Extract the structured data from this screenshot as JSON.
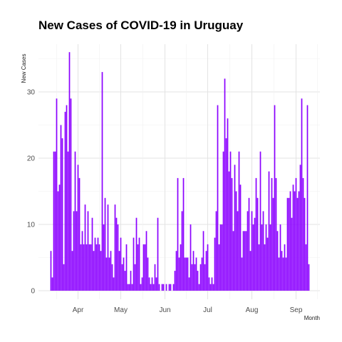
{
  "chart_data": {
    "type": "bar",
    "title": "New Cases of COVID-19 in Uruguay",
    "xlabel": "Month",
    "ylabel": "New Cases",
    "ylim": [
      0,
      36
    ],
    "y_ticks": [
      0,
      10,
      20,
      30
    ],
    "x_tick_labels": [
      "Apr",
      "May",
      "Jun",
      "Jul",
      "Aug",
      "Sep"
    ],
    "grid": true,
    "bar_color": "#8B00FF",
    "x_start": "2020-03-13",
    "values": [
      6,
      2,
      21,
      21,
      29,
      15,
      16,
      25,
      23,
      4,
      27,
      28,
      21,
      36,
      29,
      6,
      12,
      21,
      12,
      19,
      17,
      7,
      9,
      7,
      13,
      7,
      12,
      7,
      7,
      11,
      6,
      8,
      7,
      8,
      7,
      6,
      33,
      10,
      14,
      5,
      13,
      5,
      6,
      4,
      2,
      13,
      11,
      10,
      6,
      8,
      4,
      5,
      3,
      7,
      1,
      1,
      3,
      1,
      8,
      4,
      11,
      7,
      8,
      1,
      2,
      7,
      7,
      9,
      5,
      2,
      1,
      2,
      1,
      4,
      2,
      11,
      1,
      0,
      1,
      1,
      0,
      1,
      0,
      1,
      1,
      0,
      1,
      3,
      6,
      17,
      5,
      7,
      12,
      17,
      5,
      5,
      5,
      2,
      10,
      4,
      6,
      4,
      5,
      3,
      1,
      4,
      5,
      9,
      4,
      6,
      7,
      2,
      1,
      2,
      1,
      8,
      12,
      28,
      7,
      10,
      10,
      21,
      32,
      23,
      26,
      18,
      21,
      17,
      9,
      19,
      15,
      12,
      21,
      16,
      5,
      9,
      9,
      9,
      12,
      14,
      6,
      12,
      10,
      11,
      17,
      14,
      7,
      21,
      10,
      12,
      7,
      10,
      8,
      18,
      10,
      17,
      14,
      28,
      17,
      9,
      5,
      10,
      6,
      5,
      7,
      5,
      14,
      14,
      15,
      11,
      16,
      15,
      17,
      14,
      15,
      19,
      29,
      17,
      14,
      7,
      28,
      4
    ]
  }
}
